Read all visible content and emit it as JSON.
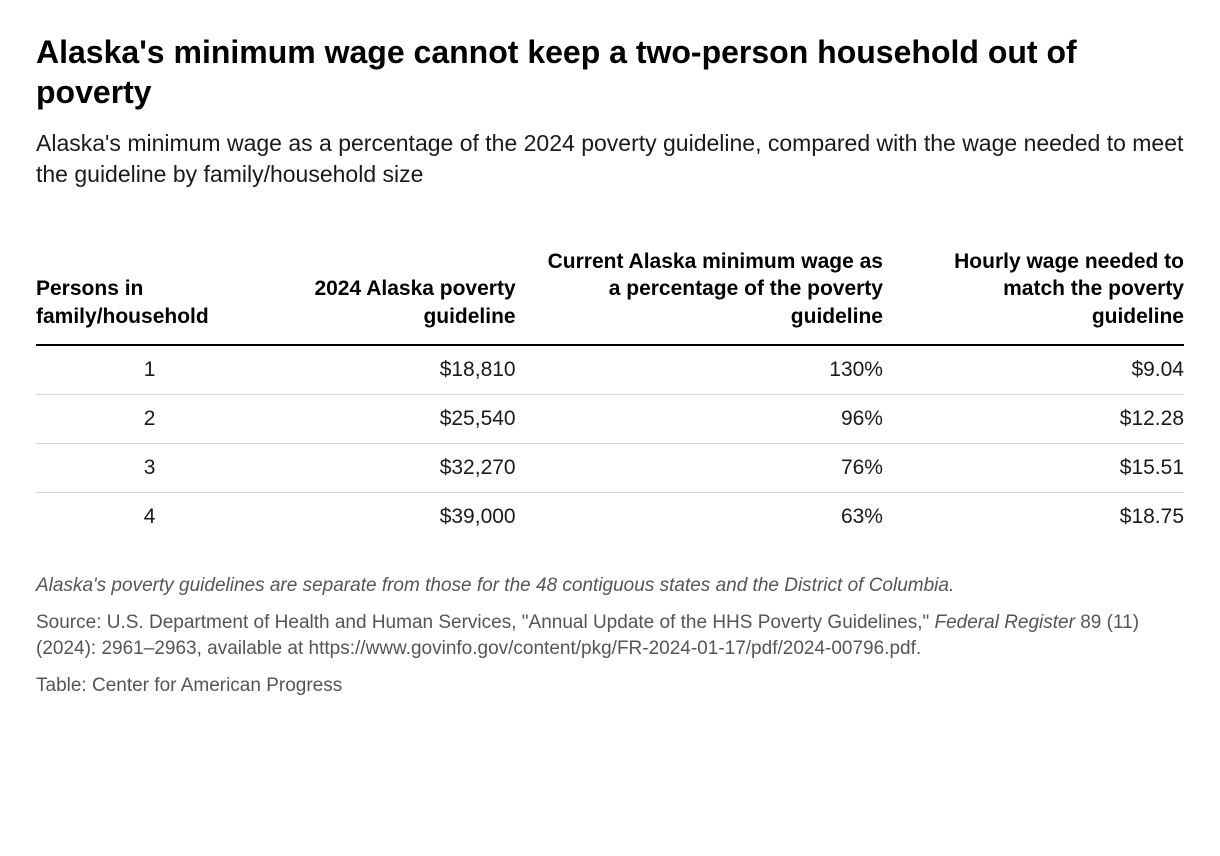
{
  "title": "Alaska's minimum wage cannot keep a two-person household out of poverty",
  "subtitle": "Alaska's minimum wage as a percentage of the 2024 poverty guideline, compared with the wage needed to meet the guideline by family/household size",
  "table": {
    "columns": [
      "Persons in family/household",
      "2024 Alaska poverty guideline",
      "Current Alaska minimum wage as a percentage of the poverty guideline",
      "Hourly wage needed to match the poverty guideline"
    ],
    "rows": [
      {
        "persons": "1",
        "guideline": "$18,810",
        "percentage": "130%",
        "hourly": "$9.04"
      },
      {
        "persons": "2",
        "guideline": "$25,540",
        "percentage": "96%",
        "hourly": "$12.28"
      },
      {
        "persons": "3",
        "guideline": "$32,270",
        "percentage": "76%",
        "hourly": "$15.51"
      },
      {
        "persons": "4",
        "guideline": "$39,000",
        "percentage": "63%",
        "hourly": "$18.75"
      }
    ],
    "column_alignments": [
      "center",
      "right",
      "right",
      "right"
    ],
    "header_border_color": "#000000",
    "row_border_color": "#d8d8d8",
    "header_fontsize": 21,
    "cell_fontsize": 21
  },
  "note": "Alaska's poverty guidelines are separate from those for the 48 contiguous states and the District of Columbia.",
  "source_prefix": "Source: U.S. Department of Health and Human Services, \"Annual Update of the HHS Poverty Guidelines,\" ",
  "source_italic": "Federal Register",
  "source_suffix": " 89 (11) (2024): 2961–2963, available at https://www.govinfo.gov/content/pkg/FR-2024-01-17/pdf/2024-00796.pdf.",
  "credit": "Table: Center for American Progress",
  "styling": {
    "background_color": "#ffffff",
    "text_color": "#1a1a1a",
    "muted_text_color": "#555555",
    "title_fontsize": 32,
    "subtitle_fontsize": 23,
    "footer_fontsize": 19
  }
}
